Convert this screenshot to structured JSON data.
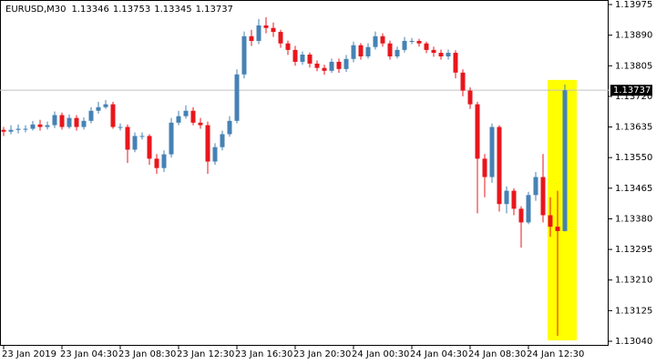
{
  "chart_data": {
    "type": "candlestick",
    "title": "EURUSD,M30",
    "categories": [
      "23 Jan 2019",
      null,
      null,
      null,
      null,
      null,
      null,
      null,
      "23 Jan 04:30",
      null,
      null,
      null,
      null,
      null,
      null,
      null,
      "23 Jan 08:30",
      null,
      null,
      null,
      null,
      null,
      null,
      null,
      "23 Jan 12:30",
      null,
      null,
      null,
      null,
      null,
      null,
      null,
      "23 Jan 16:30",
      null,
      null,
      null,
      null,
      null,
      null,
      null,
      "23 Jan 20:30",
      null,
      null,
      null,
      null,
      null,
      null,
      null,
      "24 Jan 00:30",
      null,
      null,
      null,
      null,
      null,
      null,
      null,
      "24 Jan 04:30",
      null,
      null,
      null,
      null,
      null,
      null,
      null,
      "24 Jan 08:30",
      null,
      null,
      null,
      null,
      null,
      null,
      null,
      "24 Jan 12:30",
      null,
      null,
      null,
      null,
      null
    ],
    "open": [
      1.13627,
      1.13622,
      1.13627,
      1.1363,
      1.1363,
      1.13642,
      1.13635,
      1.1364,
      1.13668,
      1.13635,
      1.1366,
      1.13635,
      1.13652,
      1.1368,
      1.1369,
      1.13698,
      1.13635,
      1.13635,
      1.13572,
      1.1361,
      1.1361,
      1.13547,
      1.13521,
      1.13559,
      1.13647,
      1.13665,
      1.1368,
      1.13647,
      1.1364,
      1.13539,
      1.13579,
      1.13615,
      1.13652,
      1.13781,
      1.13887,
      1.13874,
      1.13917,
      1.1391,
      1.13899,
      1.13867,
      1.13849,
      1.13816,
      1.13836,
      1.13811,
      1.13799,
      1.13791,
      1.13816,
      1.13796,
      1.13824,
      1.13862,
      1.13831,
      1.13857,
      1.13887,
      1.13867,
      1.13831,
      1.13849,
      1.13874,
      1.13874,
      1.13867,
      1.13849,
      1.13841,
      1.13831,
      1.13841,
      1.13786,
      1.13736,
      1.13698,
      1.13547,
      1.13496,
      1.13635,
      1.13421,
      1.13458,
      1.13408,
      1.1337,
      1.13446,
      1.13496,
      1.1339,
      1.13358,
      1.13346
    ],
    "high": [
      1.13635,
      1.1364,
      1.13642,
      1.1364,
      1.13652,
      1.13655,
      1.1365,
      1.13678,
      1.13675,
      1.1367,
      1.13668,
      1.13662,
      1.1369,
      1.13705,
      1.1371,
      1.13705,
      1.13645,
      1.13642,
      1.1362,
      1.1362,
      1.13615,
      1.1356,
      1.1357,
      1.1366,
      1.1368,
      1.13695,
      1.1369,
      1.1366,
      1.1365,
      1.1359,
      1.13625,
      1.13665,
      1.13795,
      1.139,
      1.13905,
      1.13935,
      1.1394,
      1.13925,
      1.13905,
      1.13875,
      1.1386,
      1.13845,
      1.13842,
      1.1382,
      1.13808,
      1.13825,
      1.13825,
      1.13835,
      1.13872,
      1.13868,
      1.13868,
      1.139,
      1.13895,
      1.13875,
      1.13858,
      1.13885,
      1.13882,
      1.1388,
      1.13872,
      1.13858,
      1.1385,
      1.1385,
      1.13848,
      1.13795,
      1.13745,
      1.13705,
      1.1356,
      1.13645,
      1.1364,
      1.1347,
      1.13465,
      1.13415,
      1.13455,
      1.1351,
      1.1356,
      1.1344,
      1.13458,
      1.13753
    ],
    "low": [
      1.1361,
      1.13615,
      1.13617,
      1.1362,
      1.13625,
      1.13625,
      1.13628,
      1.13632,
      1.13628,
      1.1363,
      1.13625,
      1.13628,
      1.13645,
      1.13672,
      1.13685,
      1.1363,
      1.13625,
      1.13535,
      1.13565,
      1.136,
      1.1353,
      1.13505,
      1.1351,
      1.1355,
      1.1364,
      1.13658,
      1.1364,
      1.1363,
      1.13505,
      1.1353,
      1.1357,
      1.13608,
      1.13645,
      1.1377,
      1.1386,
      1.13865,
      1.13895,
      1.13885,
      1.13855,
      1.13835,
      1.13805,
      1.13808,
      1.138,
      1.1379,
      1.1378,
      1.13785,
      1.13785,
      1.13788,
      1.13815,
      1.13822,
      1.13825,
      1.1385,
      1.13858,
      1.13822,
      1.13825,
      1.13842,
      1.13865,
      1.13858,
      1.1384,
      1.1383,
      1.13822,
      1.13822,
      1.1377,
      1.1372,
      1.13685,
      1.13395,
      1.1344,
      1.1348,
      1.134,
      1.13395,
      1.1339,
      1.133,
      1.13365,
      1.1343,
      1.1337,
      1.1333,
      1.13055,
      1.13345
    ],
    "close": [
      1.13622,
      1.13627,
      1.1363,
      1.1363,
      1.13642,
      1.13635,
      1.1364,
      1.13668,
      1.13635,
      1.1366,
      1.13635,
      1.13652,
      1.1368,
      1.1369,
      1.13698,
      1.13635,
      1.13635,
      1.13572,
      1.1361,
      1.1361,
      1.13547,
      1.13521,
      1.13559,
      1.13647,
      1.13665,
      1.1368,
      1.13647,
      1.1364,
      1.13539,
      1.13579,
      1.13615,
      1.13652,
      1.13781,
      1.13887,
      1.13874,
      1.13917,
      1.1391,
      1.13899,
      1.13867,
      1.13849,
      1.13816,
      1.13836,
      1.13811,
      1.13799,
      1.13791,
      1.13816,
      1.13796,
      1.13824,
      1.13862,
      1.13831,
      1.13857,
      1.13887,
      1.13867,
      1.13831,
      1.13849,
      1.13874,
      1.13874,
      1.13867,
      1.13849,
      1.13841,
      1.13831,
      1.13841,
      1.13786,
      1.13736,
      1.13698,
      1.13547,
      1.13496,
      1.13635,
      1.13421,
      1.13458,
      1.13408,
      1.1337,
      1.13446,
      1.13496,
      1.1339,
      1.13358,
      1.13346,
      1.13737
    ],
    "up_color": "#4682b4",
    "down_color": "#e8161c",
    "ylim": [
      1.1304,
      1.13975
    ],
    "yticks": [
      1.13975,
      {
        "value": 1.1389,
        "label": "1.13890"
      },
      1.13805,
      {
        "value": 1.1372,
        "label": "1.13720"
      },
      1.13635,
      {
        "value": 1.1355,
        "label": "1.13550"
      },
      1.13465,
      {
        "value": 1.1338,
        "label": "1.13380"
      },
      1.13295,
      {
        "value": 1.1321,
        "label": "1.13210"
      },
      1.13125,
      {
        "value": 1.1304,
        "label": "1.13040"
      }
    ]
  }
}
